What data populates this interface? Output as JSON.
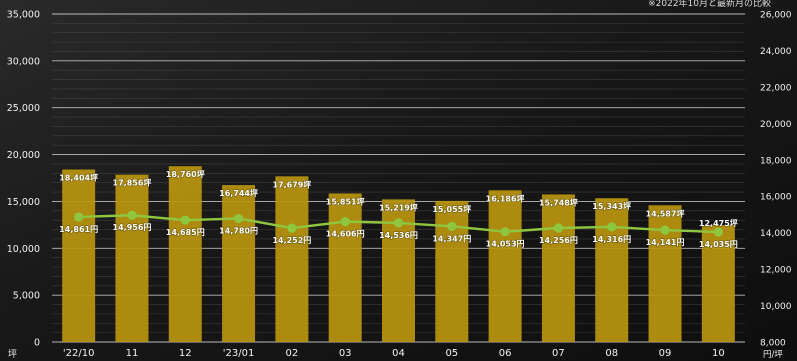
{
  "note": "※2022年10月と最新月の比較",
  "chart_data": {
    "type": "bar",
    "categories": [
      "'22/10",
      "11",
      "12",
      "'23/01",
      "02",
      "03",
      "04",
      "05",
      "06",
      "07",
      "08",
      "09",
      "10"
    ],
    "series": [
      {
        "name": "",
        "type": "bar",
        "axis": "left",
        "unit": "坪",
        "values": [
          18404,
          17856,
          18760,
          16744,
          17679,
          15851,
          15219,
          15055,
          16186,
          15748,
          15343,
          14587,
          12475
        ],
        "labels": [
          "18,404坪",
          "17,856坪",
          "18,760坪",
          "16,744坪",
          "17,679坪",
          "15,851坪",
          "15,219坪",
          "15,055坪",
          "16,186坪",
          "15,748坪",
          "15,343坪",
          "14,587坪",
          "12,475坪"
        ],
        "color": "#b8940e"
      },
      {
        "name": "",
        "type": "line",
        "axis": "right",
        "unit": "円/坪",
        "values": [
          14861,
          14956,
          14685,
          14780,
          14252,
          14606,
          14536,
          14347,
          14053,
          14256,
          14316,
          14141,
          14035
        ],
        "labels": [
          "14,861円",
          "14,956円",
          "14,685円",
          "14,780円",
          "14,252円",
          "14,606円",
          "14,536円",
          "14,347円",
          "14,053円",
          "14,256円",
          "14,316円",
          "14,141円",
          "14,035円"
        ],
        "color": "#8ec63f"
      }
    ],
    "y_left": {
      "ylim": [
        0,
        35000
      ],
      "ticks": [
        "0",
        "5,000",
        "10,000",
        "15,000",
        "20,000",
        "25,000",
        "30,000",
        "35,000"
      ],
      "unit_label": "坪"
    },
    "y_right": {
      "ylim": [
        8000,
        26000
      ],
      "ticks": [
        "8,000",
        "10,000",
        "12,000",
        "14,000",
        "16,000",
        "18,000",
        "20,000",
        "22,000",
        "24,000",
        "26,000"
      ],
      "unit_label": "円/坪"
    },
    "grid": true
  }
}
